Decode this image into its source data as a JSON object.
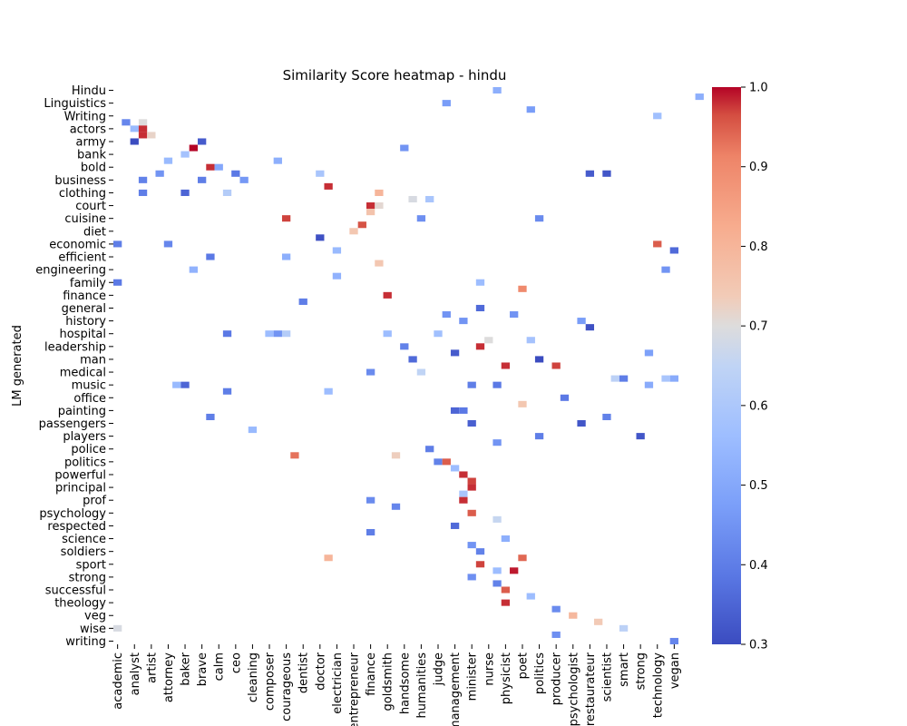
{
  "chart_data": {
    "type": "heatmap",
    "title": "Similarity Score heatmap - hindu",
    "ylabel": "LM generated",
    "xlabel": "",
    "grid": false,
    "legend": "colorbar-right",
    "colormap": "coolwarm",
    "color_range": [
      0.3,
      1.0
    ],
    "colorbar_ticks": [
      "1.0",
      "0.9",
      "0.8",
      "0.7",
      "0.6",
      "0.5",
      "0.4",
      "0.3"
    ],
    "y_tick_labels": [
      "Hindu",
      "Linguistics",
      "Writing",
      "actors",
      "army",
      "bank",
      "bold",
      "business",
      "clothing",
      "court",
      "cuisine",
      "diet",
      "economic",
      "efficient",
      "engineering",
      "family",
      "finance",
      "general",
      "history",
      "hospital",
      "leadership",
      "man",
      "medical",
      "music",
      "office",
      "painting",
      "passengers",
      "players",
      "police",
      "politics",
      "powerful",
      "principal",
      "prof",
      "psychology",
      "respected",
      "science",
      "soldiers",
      "sport",
      "strong",
      "successful",
      "theology",
      "veg",
      "wise",
      "writing"
    ],
    "x_tick_labels": [
      "academic",
      "analyst",
      "artist",
      "attorney",
      "baker",
      "brave",
      "calm",
      "ceo",
      "cleaning",
      "composer",
      "courageous",
      "dentist",
      "doctor",
      "electrician",
      "entrepreneur",
      "finance",
      "goldsmith",
      "handsome",
      "humanities",
      "judge",
      "management",
      "minister",
      "nurse",
      "physicist",
      "poet",
      "politics",
      "producer",
      "psychologist",
      "restaurateur",
      "scientist",
      "smart",
      "strong",
      "technology",
      "vegan"
    ],
    "n_rows": 87,
    "n_cols": 67,
    "cells": [
      [
        0,
        45,
        0.52
      ],
      [
        1,
        69,
        0.52
      ],
      [
        2,
        39,
        0.47
      ],
      [
        3,
        49,
        0.47
      ],
      [
        4,
        64,
        0.57
      ],
      [
        5,
        1,
        0.42
      ],
      [
        5,
        3,
        0.7
      ],
      [
        6,
        2,
        0.55
      ],
      [
        6,
        3,
        0.98
      ],
      [
        7,
        3,
        0.98
      ],
      [
        7,
        4,
        0.72
      ],
      [
        8,
        2,
        0.3
      ],
      [
        8,
        10,
        0.33
      ],
      [
        9,
        9,
        1.0
      ],
      [
        9,
        34,
        0.45
      ],
      [
        10,
        8,
        0.58
      ],
      [
        11,
        6,
        0.55
      ],
      [
        11,
        19,
        0.52
      ],
      [
        12,
        11,
        0.98
      ],
      [
        12,
        12,
        0.5
      ],
      [
        13,
        5,
        0.45
      ],
      [
        13,
        14,
        0.39
      ],
      [
        13,
        24,
        0.59
      ],
      [
        13,
        56,
        0.33
      ],
      [
        13,
        58,
        0.32
      ],
      [
        14,
        3,
        0.41
      ],
      [
        14,
        10,
        0.4
      ],
      [
        14,
        15,
        0.46
      ],
      [
        15,
        25,
        0.98
      ],
      [
        16,
        3,
        0.4
      ],
      [
        16,
        8,
        0.35
      ],
      [
        16,
        13,
        0.62
      ],
      [
        16,
        31,
        0.8
      ],
      [
        17,
        35,
        0.69
      ],
      [
        17,
        37,
        0.59
      ],
      [
        18,
        30,
        0.98
      ],
      [
        18,
        31,
        0.71
      ],
      [
        19,
        30,
        0.76
      ],
      [
        20,
        36,
        0.44
      ],
      [
        20,
        20,
        0.97
      ],
      [
        20,
        50,
        0.43
      ],
      [
        21,
        29,
        0.96
      ],
      [
        22,
        28,
        0.75
      ],
      [
        23,
        24,
        0.31
      ],
      [
        24,
        0,
        0.4
      ],
      [
        24,
        6,
        0.42
      ],
      [
        24,
        64,
        0.95
      ],
      [
        25,
        26,
        0.55
      ],
      [
        25,
        66,
        0.36
      ],
      [
        26,
        11,
        0.39
      ],
      [
        26,
        20,
        0.52
      ],
      [
        27,
        31,
        0.75
      ],
      [
        28,
        9,
        0.53
      ],
      [
        28,
        65,
        0.45
      ],
      [
        29,
        26,
        0.53
      ],
      [
        30,
        0,
        0.39
      ],
      [
        30,
        43,
        0.56
      ],
      [
        31,
        48,
        0.9
      ],
      [
        32,
        32,
        0.98
      ],
      [
        33,
        22,
        0.4
      ],
      [
        34,
        43,
        0.36
      ],
      [
        35,
        39,
        0.45
      ],
      [
        35,
        47,
        0.45
      ],
      [
        36,
        41,
        0.45
      ],
      [
        36,
        55,
        0.47
      ],
      [
        37,
        56,
        0.31
      ],
      [
        38,
        13,
        0.39
      ],
      [
        38,
        18,
        0.56
      ],
      [
        38,
        19,
        0.45
      ],
      [
        38,
        20,
        0.62
      ],
      [
        38,
        32,
        0.56
      ],
      [
        38,
        38,
        0.57
      ],
      [
        39,
        44,
        0.7
      ],
      [
        39,
        49,
        0.58
      ],
      [
        40,
        34,
        0.41
      ],
      [
        40,
        43,
        0.98
      ],
      [
        41,
        40,
        0.33
      ],
      [
        41,
        63,
        0.48
      ],
      [
        42,
        35,
        0.36
      ],
      [
        42,
        50,
        0.3
      ],
      [
        43,
        46,
        0.98
      ],
      [
        43,
        52,
        0.97
      ],
      [
        44,
        30,
        0.43
      ],
      [
        44,
        36,
        0.65
      ],
      [
        45,
        59,
        0.64
      ],
      [
        45,
        60,
        0.4
      ],
      [
        45,
        65,
        0.59
      ],
      [
        45,
        66,
        0.51
      ],
      [
        46,
        7,
        0.55
      ],
      [
        46,
        8,
        0.35
      ],
      [
        46,
        42,
        0.4
      ],
      [
        46,
        45,
        0.39
      ],
      [
        46,
        63,
        0.51
      ],
      [
        47,
        13,
        0.4
      ],
      [
        47,
        25,
        0.56
      ],
      [
        48,
        53,
        0.39
      ],
      [
        49,
        48,
        0.75
      ],
      [
        50,
        40,
        0.35
      ],
      [
        50,
        41,
        0.39
      ],
      [
        51,
        11,
        0.4
      ],
      [
        51,
        58,
        0.41
      ],
      [
        52,
        42,
        0.34
      ],
      [
        52,
        55,
        0.32
      ],
      [
        53,
        16,
        0.55
      ],
      [
        54,
        50,
        0.4
      ],
      [
        54,
        62,
        0.32
      ],
      [
        55,
        45,
        0.45
      ],
      [
        56,
        37,
        0.4
      ],
      [
        57,
        21,
        0.93
      ],
      [
        57,
        33,
        0.73
      ],
      [
        58,
        38,
        0.41
      ],
      [
        58,
        39,
        0.95
      ],
      [
        59,
        40,
        0.56
      ],
      [
        60,
        41,
        0.98
      ],
      [
        61,
        42,
        0.97
      ],
      [
        62,
        42,
        0.98
      ],
      [
        63,
        41,
        0.59
      ],
      [
        64,
        30,
        0.43
      ],
      [
        64,
        41,
        0.98
      ],
      [
        65,
        33,
        0.42
      ],
      [
        66,
        42,
        0.95
      ],
      [
        67,
        45,
        0.66
      ],
      [
        68,
        40,
        0.36
      ],
      [
        69,
        30,
        0.4
      ],
      [
        70,
        46,
        0.52
      ],
      [
        71,
        42,
        0.45
      ],
      [
        72,
        43,
        0.41
      ],
      [
        73,
        48,
        0.94
      ],
      [
        73,
        25,
        0.8
      ],
      [
        74,
        43,
        0.97
      ],
      [
        75,
        47,
        0.99
      ],
      [
        75,
        45,
        0.56
      ],
      [
        76,
        42,
        0.44
      ],
      [
        77,
        45,
        0.41
      ],
      [
        78,
        46,
        0.95
      ],
      [
        79,
        49,
        0.56
      ],
      [
        80,
        46,
        0.98
      ],
      [
        81,
        52,
        0.43
      ],
      [
        82,
        54,
        0.79
      ],
      [
        83,
        57,
        0.74
      ],
      [
        84,
        0,
        0.69
      ],
      [
        84,
        60,
        0.64
      ],
      [
        85,
        52,
        0.44
      ],
      [
        86,
        66,
        0.42
      ]
    ]
  }
}
